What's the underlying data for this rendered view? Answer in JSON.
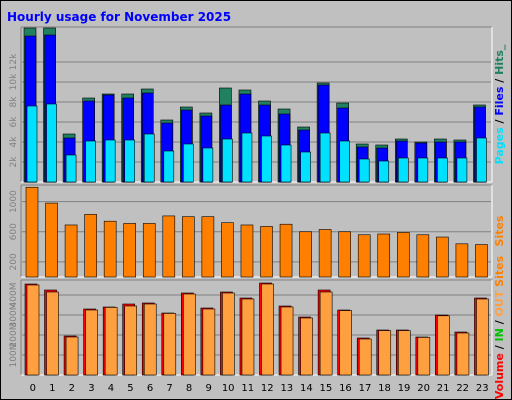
{
  "chart_data": {
    "type": "bar",
    "title": "Hourly usage for November 2025",
    "categories": [
      "0",
      "1",
      "2",
      "3",
      "4",
      "5",
      "6",
      "7",
      "8",
      "9",
      "10",
      "11",
      "12",
      "13",
      "14",
      "15",
      "16",
      "17",
      "18",
      "19",
      "20",
      "21",
      "22",
      "23"
    ],
    "panels": [
      {
        "name": "hits-files-pages",
        "y_tick_labels": [
          "2k",
          "4k",
          "6k",
          "8k",
          "10k",
          "12k"
        ],
        "y_tick_values": [
          2000,
          4000,
          6000,
          8000,
          10000,
          12000
        ],
        "ylim": [
          0,
          15500
        ],
        "side_labels": [
          "Pages",
          "/",
          "Files",
          "/",
          "Hits",
          "_"
        ],
        "series": [
          {
            "name": "Hits",
            "color": "#208060",
            "values": [
              15400,
              15400,
              4800,
              8400,
              8800,
              8800,
              9300,
              6200,
              7500,
              6900,
              9400,
              9200,
              8100,
              7300,
              5500,
              9900,
              7900,
              3800,
              3700,
              4300,
              4000,
              4300,
              4200,
              7700
            ]
          },
          {
            "name": "Files",
            "color": "#0000ff",
            "values": [
              14600,
              14700,
              4400,
              8100,
              8700,
              8400,
              8900,
              5900,
              7200,
              6600,
              7700,
              8800,
              7700,
              6800,
              5200,
              9700,
              7400,
              3500,
              3400,
              4100,
              3900,
              4000,
              4000,
              7500
            ]
          },
          {
            "name": "Pages",
            "color": "#00e0ff",
            "values": [
              7600,
              7800,
              2700,
              4100,
              4200,
              4200,
              4800,
              3100,
              3800,
              3400,
              4300,
              4900,
              4600,
              3700,
              3000,
              4900,
              4100,
              2300,
              2100,
              2400,
              2400,
              2400,
              2400,
              4400
            ]
          }
        ]
      },
      {
        "name": "sites",
        "y_tick_labels": [
          "200",
          "600",
          "1000"
        ],
        "y_tick_values": [
          200,
          600,
          1000
        ],
        "ylim": [
          0,
          1220
        ],
        "side_labels": [
          "Sites"
        ],
        "series": [
          {
            "name": "Sites",
            "color": "#ff8000",
            "values": [
              1190,
              980,
              690,
              830,
              740,
              710,
              710,
              810,
              800,
              800,
              720,
              690,
              670,
              700,
              600,
              630,
              600,
              560,
              570,
              590,
              560,
              530,
              440,
              430
            ]
          }
        ]
      },
      {
        "name": "kbytes-in-out",
        "y_tick_labels": [
          "100M",
          "200M",
          "300M",
          "400M"
        ],
        "y_tick_values": [
          100,
          200,
          300,
          400
        ],
        "ylim": [
          0,
          475
        ],
        "side_labels": [
          "Volume",
          "/",
          "IN",
          "/",
          "OUT",
          "Sites"
        ],
        "series": [
          {
            "name": "Volume",
            "color": "#ff0000",
            "values": [
              455,
              425,
              195,
              330,
              340,
              355,
              360,
              310,
              410,
              335,
              415,
              385,
              460,
              345,
              290,
              425,
              325,
              185,
              225,
              225,
              190,
              300,
              215,
              385
            ]
          },
          {
            "name": "OUT",
            "color": "#ffa040",
            "values": [
              450,
              415,
              190,
              325,
              338,
              345,
              355,
              308,
              405,
              330,
              410,
              380,
              455,
              340,
              285,
              415,
              322,
              180,
              222,
              222,
              188,
              296,
              210,
              380
            ]
          }
        ]
      }
    ],
    "colors": {
      "background": "#c0c0c0",
      "title": "#0000ff",
      "hits": "#208060",
      "files": "#0000ff",
      "pages": "#00e0ff",
      "sites": "#ff8000",
      "volume": "#ff0000",
      "in": "#00c000",
      "out": "#ffa040"
    }
  }
}
